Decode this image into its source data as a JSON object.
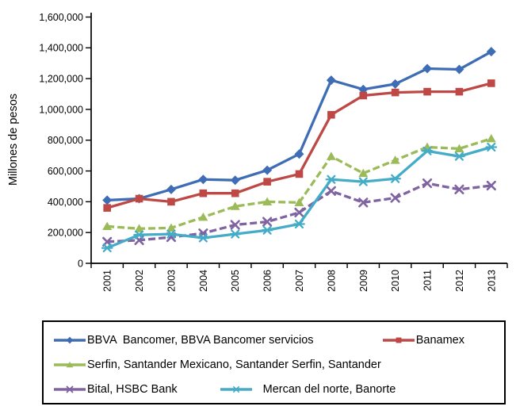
{
  "chart_data": {
    "type": "line",
    "title": "",
    "xlabel": "",
    "ylabel": "Millones de pesos",
    "ylim": [
      0,
      1600000
    ],
    "ytick_interval": 200000,
    "ytick_labels": [
      "0",
      "200,000",
      "400,000",
      "600,000",
      "800,000",
      "1,000,000",
      "1,200,000",
      "1,400,000",
      "1,600,000"
    ],
    "grid": false,
    "legend_position": "bottom-box",
    "categories": [
      "2001",
      "2002",
      "2003",
      "2004",
      "2005",
      "2006",
      "2007",
      "2008",
      "2009",
      "2010",
      "2011",
      "2012",
      "2013"
    ],
    "series": [
      {
        "name": "BBVA  Bancomer, BBVA Bancomer servicios",
        "color": "#3E6DB5",
        "marker": "diamond",
        "line_style": "solid",
        "values": [
          410000,
          420000,
          480000,
          545000,
          540000,
          605000,
          710000,
          1190000,
          1130000,
          1165000,
          1265000,
          1260000,
          1375000
        ]
      },
      {
        "name": "Banamex",
        "color": "#BE4845",
        "marker": "square",
        "line_style": "solid",
        "values": [
          360000,
          420000,
          400000,
          455000,
          455000,
          530000,
          580000,
          965000,
          1090000,
          1110000,
          1115000,
          1115000,
          1170000
        ]
      },
      {
        "name": "Serfin, Santander Mexicano, Santander Serfin, Santander",
        "color": "#9BBB59",
        "marker": "triangle",
        "line_style": "dashed",
        "values": [
          240000,
          225000,
          230000,
          300000,
          370000,
          400000,
          395000,
          695000,
          585000,
          670000,
          755000,
          745000,
          810000
        ]
      },
      {
        "name": "Bital, HSBC Bank",
        "color": "#8064A2",
        "marker": "x",
        "line_style": "dashed",
        "values": [
          140000,
          150000,
          170000,
          195000,
          250000,
          270000,
          330000,
          470000,
          395000,
          425000,
          520000,
          480000,
          505000
        ]
      },
      {
        "name": "Mercan del norte, Banorte",
        "color": "#45ACC8",
        "marker": "asterisk",
        "line_style": "solid",
        "values": [
          100000,
          185000,
          190000,
          165000,
          190000,
          215000,
          255000,
          545000,
          530000,
          550000,
          730000,
          695000,
          755000
        ]
      }
    ]
  }
}
